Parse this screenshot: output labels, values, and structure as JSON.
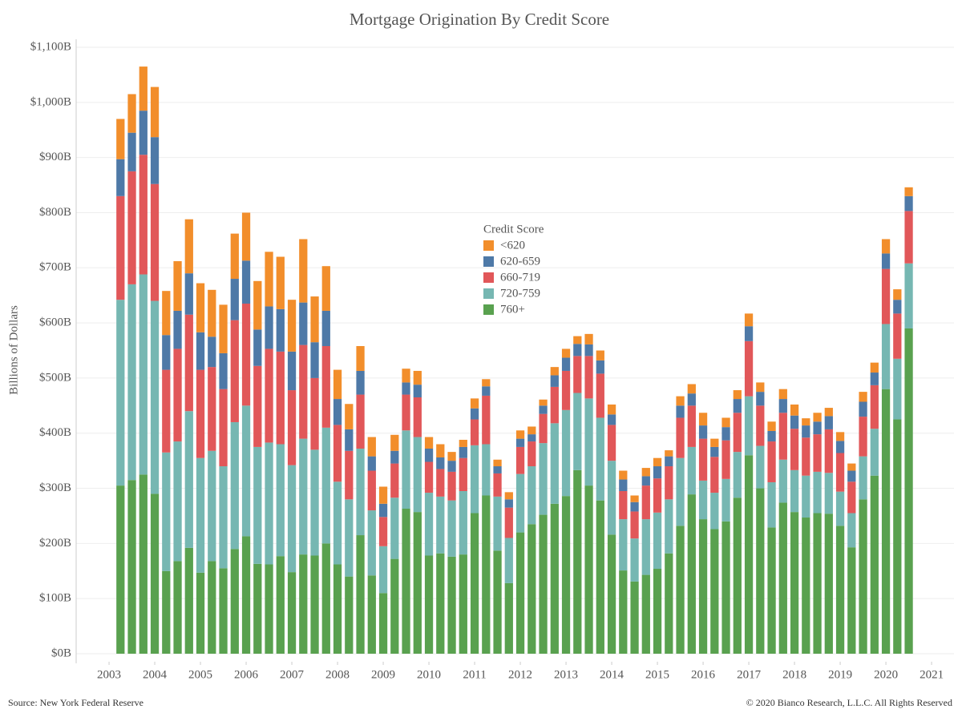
{
  "chart_data": {
    "type": "stacked_bar",
    "title": "Mortgage Origination By Credit Score",
    "y_label": "Billions of Dollars",
    "legend_title": "Credit Score",
    "source": "Source: New York Federal Reserve",
    "credit": "© 2020 Bianco Research, L.L.C. All Rights Reserved",
    "grid": true,
    "legend": "center",
    "xlim": [
      2002.28,
      2021.49
    ],
    "xticks": [
      2003,
      2004,
      2005,
      2006,
      2007,
      2008,
      2009,
      2010,
      2011,
      2012,
      2013,
      2014,
      2015,
      2016,
      2017,
      2018,
      2019,
      2020,
      2021
    ],
    "ylim": [
      0,
      1100
    ],
    "yticks": [
      {
        "value": 0,
        "label": "$0B"
      },
      {
        "value": 100,
        "label": "$100B"
      },
      {
        "value": 200,
        "label": "$200B"
      },
      {
        "value": 300,
        "label": "$300B"
      },
      {
        "value": 400,
        "label": "$400B"
      },
      {
        "value": 500,
        "label": "$500B"
      },
      {
        "value": 600,
        "label": "$600B"
      },
      {
        "value": 700,
        "label": "$700B"
      },
      {
        "value": 800,
        "label": "$800B"
      },
      {
        "value": 900,
        "label": "$900B"
      },
      {
        "value": 1000,
        "label": "$1,000B"
      },
      {
        "value": 1100,
        "label": "$1,100B"
      }
    ],
    "x": [
      2003.25,
      2003.5,
      2003.75,
      2004,
      2004.25,
      2004.5,
      2004.75,
      2005,
      2005.25,
      2005.5,
      2005.75,
      2006,
      2006.25,
      2006.5,
      2006.75,
      2007,
      2007.25,
      2007.5,
      2007.75,
      2008,
      2008.25,
      2008.5,
      2008.75,
      2009,
      2009.25,
      2009.5,
      2009.75,
      2010,
      2010.25,
      2010.5,
      2010.75,
      2011,
      2011.25,
      2011.5,
      2011.75,
      2012,
      2012.25,
      2012.5,
      2012.75,
      2013,
      2013.25,
      2013.5,
      2013.75,
      2014,
      2014.25,
      2014.5,
      2014.75,
      2015,
      2015.25,
      2015.5,
      2015.75,
      2016,
      2016.25,
      2016.5,
      2016.75,
      2017,
      2017.25,
      2017.5,
      2017.75,
      2018,
      2018.25,
      2018.5,
      2018.75,
      2019,
      2019.25,
      2019.5,
      2019.75,
      2020,
      2020.25,
      2020.5
    ],
    "series": [
      {
        "name": "760+",
        "color": "#59a14f",
        "values": [
          305,
          315,
          325,
          290,
          150,
          168,
          192,
          147,
          168,
          155,
          190,
          213,
          163,
          162,
          177,
          148,
          180,
          178,
          200,
          162,
          140,
          215,
          142,
          110,
          172,
          263,
          257,
          178,
          182,
          176,
          180,
          255,
          287,
          187,
          128,
          220,
          235,
          252,
          272,
          286,
          333,
          305,
          278,
          216,
          151,
          131,
          143,
          154,
          182,
          232,
          289,
          244,
          226,
          240,
          283,
          360,
          300,
          229,
          274,
          257,
          247,
          255,
          254,
          232,
          193,
          280,
          323,
          480,
          425,
          590
        ]
      },
      {
        "name": "720-759",
        "color": "#76b7b2",
        "values": [
          337,
          355,
          363,
          350,
          215,
          217,
          248,
          208,
          200,
          185,
          230,
          237,
          212,
          221,
          203,
          194,
          210,
          192,
          210,
          150,
          140,
          157,
          118,
          85,
          111,
          142,
          136,
          114,
          103,
          102,
          115,
          123,
          93,
          98,
          82,
          106,
          105,
          130,
          146,
          156,
          140,
          158,
          150,
          134,
          93,
          78,
          101,
          102,
          98,
          123,
          86,
          70,
          66,
          77,
          83,
          107,
          77,
          82,
          78,
          76,
          76,
          75,
          74,
          62,
          62,
          78,
          85,
          118,
          110,
          118
        ]
      },
      {
        "name": "660-719",
        "color": "#e15759",
        "values": [
          188,
          205,
          217,
          212,
          150,
          168,
          175,
          160,
          152,
          140,
          185,
          185,
          147,
          170,
          168,
          136,
          170,
          130,
          148,
          103,
          88,
          98,
          72,
          53,
          62,
          65,
          72,
          56,
          50,
          52,
          60,
          47,
          88,
          42,
          55,
          49,
          45,
          53,
          66,
          71,
          67,
          77,
          80,
          65,
          51,
          49,
          61,
          62,
          60,
          73,
          75,
          76,
          65,
          70,
          71,
          100,
          73,
          74,
          85,
          75,
          69,
          68,
          79,
          70,
          57,
          72,
          79,
          100,
          82,
          95
        ]
      },
      {
        "name": "620-659",
        "color": "#4e79a7",
        "values": [
          67,
          70,
          80,
          85,
          63,
          69,
          75,
          68,
          55,
          65,
          75,
          78,
          66,
          77,
          77,
          70,
          77,
          65,
          64,
          47,
          39,
          43,
          26,
          24,
          23,
          22,
          23,
          24,
          21,
          20,
          20,
          20,
          17,
          13,
          15,
          15,
          13,
          15,
          21,
          24,
          22,
          21,
          24,
          19,
          21,
          17,
          17,
          22,
          18,
          22,
          22,
          24,
          18,
          24,
          25,
          27,
          25,
          19,
          25,
          24,
          22,
          23,
          24,
          22,
          20,
          27,
          23,
          28,
          25,
          27
        ]
      },
      {
        "name": "<620",
        "color": "#f28e2b",
        "values": [
          73,
          70,
          80,
          91,
          80,
          90,
          98,
          89,
          85,
          88,
          82,
          87,
          88,
          99,
          95,
          94,
          115,
          83,
          81,
          53,
          46,
          45,
          35,
          31,
          29,
          25,
          25,
          21,
          24,
          16,
          13,
          18,
          13,
          12,
          13,
          15,
          14,
          11,
          15,
          16,
          14,
          19,
          18,
          18,
          16,
          12,
          15,
          15,
          11,
          17,
          17,
          23,
          15,
          17,
          16,
          23,
          17,
          17,
          18,
          20,
          13,
          16,
          15,
          16,
          13,
          18,
          18,
          26,
          19,
          16
        ]
      }
    ]
  }
}
